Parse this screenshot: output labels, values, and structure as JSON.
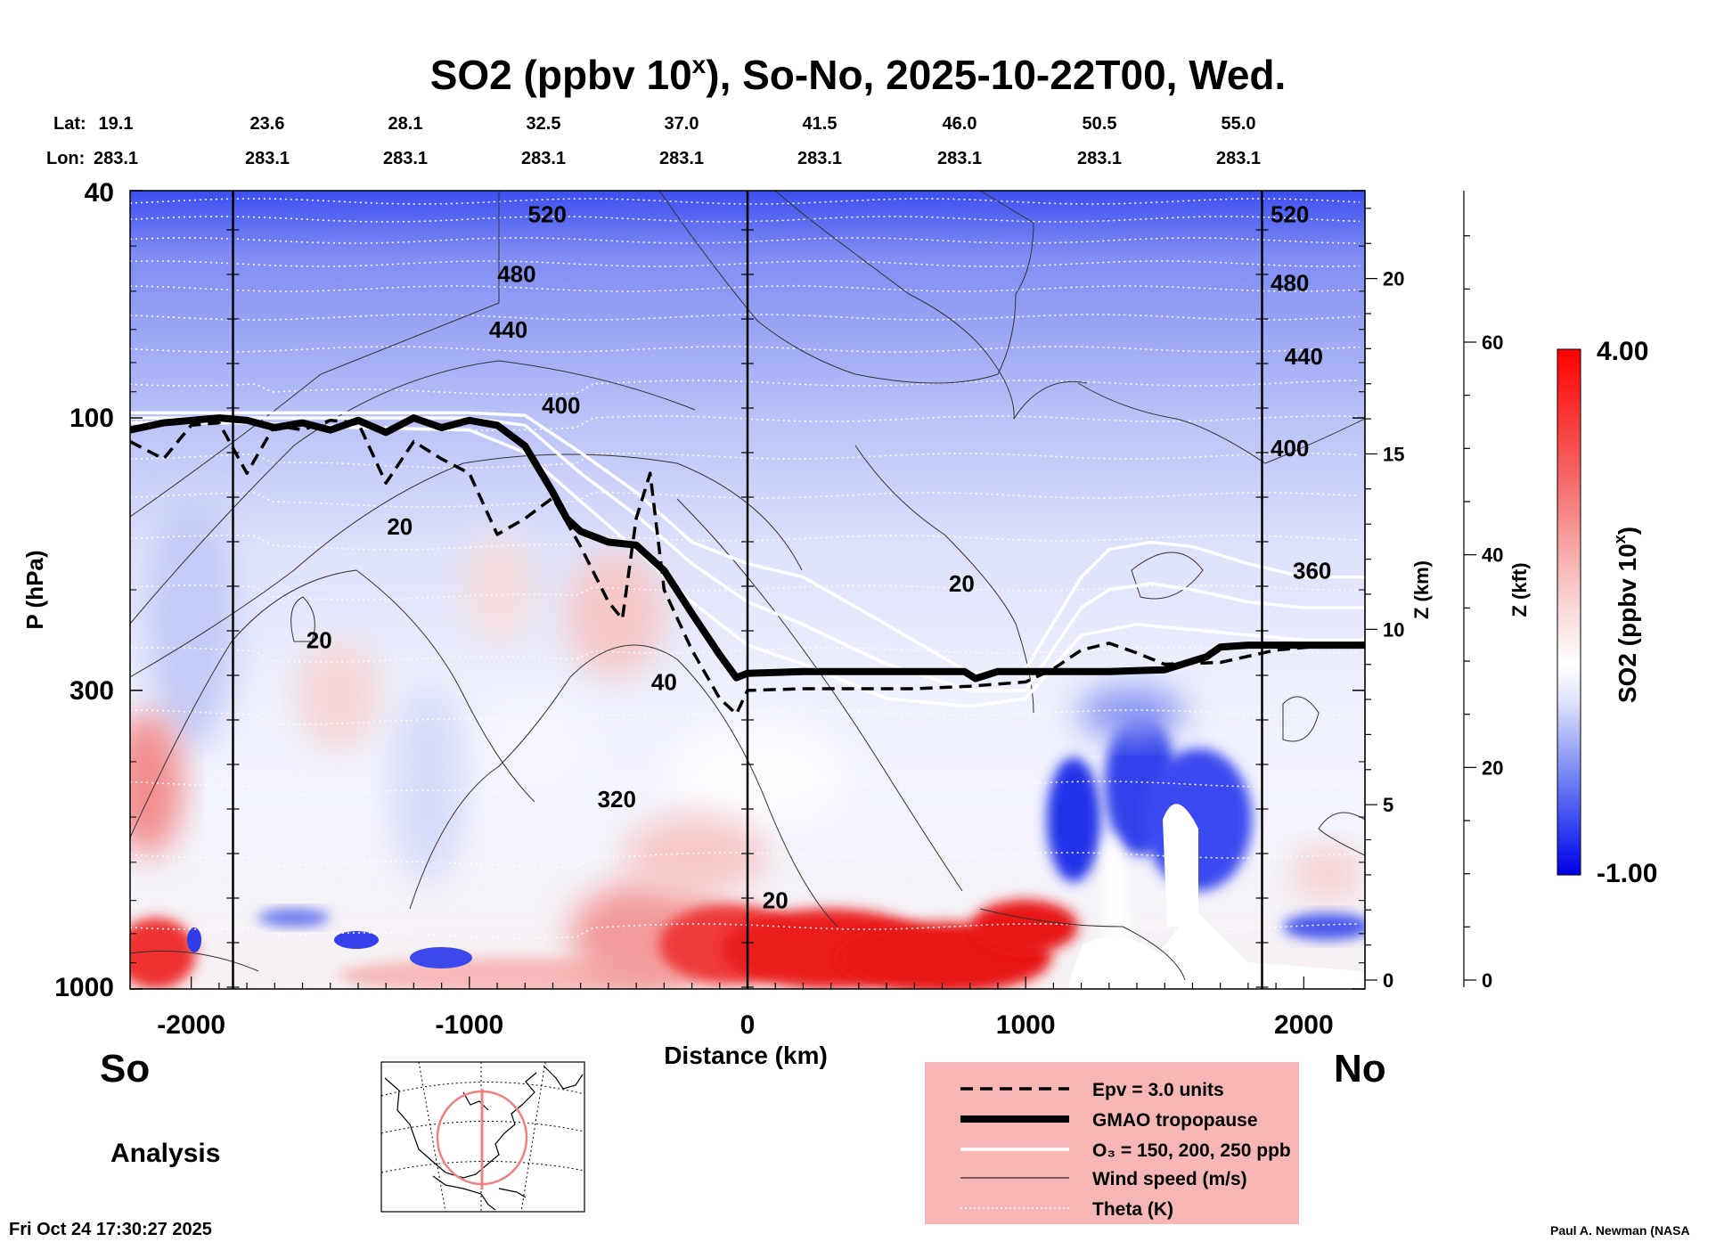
{
  "title": "SO2 (ppbv 10",
  "title_sup": "x",
  "title_rest": "), So-No, 2025-10-22T00, Wed.",
  "header": {
    "lat_label": "Lat:",
    "lon_label": "Lon:",
    "lats": [
      "19.1",
      "23.6",
      "28.1",
      "32.5",
      "37.0",
      "41.5",
      "46.0",
      "50.5",
      "55.0"
    ],
    "lons": [
      "283.1",
      "283.1",
      "283.1",
      "283.1",
      "283.1",
      "283.1",
      "283.1",
      "283.1",
      "283.1"
    ]
  },
  "footer": {
    "south_label": "So",
    "north_label": "No",
    "analysis_label": "Analysis",
    "timestamp": "Fri Oct 24 17:30:27 2025",
    "credit": "Paul A. Newman (NASA"
  },
  "legend": {
    "background": "#f7b6b6",
    "items": [
      {
        "style": "dashed",
        "label": "Epv = 3.0 units"
      },
      {
        "style": "thick",
        "label": "GMAO tropopause"
      },
      {
        "style": "white",
        "label": "O₃ = 150, 200, 250 ppb"
      },
      {
        "style": "thin",
        "label": "Wind speed (m/s)"
      },
      {
        "style": "dotted",
        "label": "Theta (K)"
      }
    ]
  },
  "colorbar": {
    "max_label": "4.00",
    "min_label": "-1.00",
    "label": "SO2 (ppbv 10",
    "label_sup": "x",
    "label_end": ")",
    "colors": [
      "#0000e6",
      "#ffffff",
      "#ff0000"
    ]
  },
  "chart_data": {
    "type": "heatmap",
    "xlabel": "Distance (km)",
    "ylabel": "P (hPa)",
    "y2label": "Z (km)",
    "y3label": "Z (kft)",
    "xlim": [
      -2220,
      2220
    ],
    "ylim": [
      1000,
      40
    ],
    "y_scale": "log",
    "x_ticks": [
      -2000,
      -1000,
      0,
      1000,
      2000
    ],
    "y_ticks": [
      40,
      100,
      300,
      1000
    ],
    "z_km_ticks": [
      0,
      5,
      10,
      15,
      20
    ],
    "z_kft_ticks": [
      0,
      20,
      40,
      60
    ],
    "vertical_lines_km": [
      -1850,
      0,
      1850
    ],
    "colorscale_range": [
      -1.0,
      4.0
    ],
    "theta_labels": [
      {
        "value": "520",
        "x": -720,
        "p": 44
      },
      {
        "value": "480",
        "x": -830,
        "p": 56
      },
      {
        "value": "440",
        "x": -860,
        "p": 70
      },
      {
        "value": "400",
        "x": -670,
        "p": 95
      },
      {
        "value": "520",
        "x": 1950,
        "p": 44
      },
      {
        "value": "480",
        "x": 1950,
        "p": 58
      },
      {
        "value": "440",
        "x": 2000,
        "p": 78
      },
      {
        "value": "400",
        "x": 1950,
        "p": 113
      },
      {
        "value": "360",
        "x": 2030,
        "p": 185
      },
      {
        "value": "320",
        "x": -470,
        "p": 465
      }
    ],
    "wind_labels": [
      {
        "value": "20",
        "x": -1250,
        "p": 155
      },
      {
        "value": "20",
        "x": -1540,
        "p": 245
      },
      {
        "value": "40",
        "x": -300,
        "p": 290
      },
      {
        "value": "20",
        "x": 770,
        "p": 195
      },
      {
        "value": "20",
        "x": 100,
        "p": 700
      }
    ],
    "tropopause": {
      "x": [
        -2220,
        -2100,
        -2000,
        -1900,
        -1800,
        -1700,
        -1600,
        -1500,
        -1400,
        -1300,
        -1200,
        -1100,
        -1000,
        -900,
        -800,
        -700,
        -650,
        -600,
        -500,
        -400,
        -300,
        -200,
        -100,
        -40,
        0,
        200,
        400,
        600,
        780,
        820,
        900,
        1100,
        1300,
        1500,
        1650,
        1700,
        1800,
        2000,
        2220
      ],
      "p": [
        105,
        102,
        101,
        100,
        101,
        104,
        102,
        105,
        101,
        106,
        100,
        104,
        101,
        103,
        112,
        135,
        150,
        158,
        165,
        167,
        185,
        220,
        260,
        285,
        280,
        278,
        278,
        278,
        278,
        286,
        278,
        278,
        278,
        276,
        262,
        252,
        250,
        250,
        250
      ]
    },
    "epv_line": {
      "x": [
        -2220,
        -2100,
        -2000,
        -1900,
        -1800,
        -1700,
        -1600,
        -1500,
        -1400,
        -1300,
        -1200,
        -1100,
        -1000,
        -900,
        -800,
        -700,
        -600,
        -500,
        -450,
        -400,
        -350,
        -300,
        -200,
        -100,
        -40,
        0,
        200,
        400,
        600,
        800,
        1000,
        1100,
        1200,
        1300,
        1400,
        1500,
        1700,
        1900,
        2100,
        2220
      ],
      "p": [
        110,
        118,
        103,
        102,
        125,
        103,
        105,
        101,
        102,
        130,
        110,
        118,
        125,
        160,
        150,
        138,
        168,
        210,
        225,
        150,
        125,
        200,
        255,
        310,
        330,
        300,
        298,
        298,
        298,
        295,
        290,
        275,
        255,
        248,
        258,
        270,
        268,
        255,
        250,
        248
      ]
    },
    "ozone_lines": [
      {
        "x": [
          -2220,
          -1800,
          -1400,
          -1000,
          -800,
          -600,
          -400,
          -200,
          0,
          200,
          500,
          800,
          1000,
          1200,
          1300,
          1450,
          1600,
          1800,
          2000,
          2220
        ],
        "p": [
          98,
          98,
          98,
          98,
          99,
          115,
          135,
          165,
          180,
          190,
          230,
          280,
          275,
          190,
          170,
          165,
          168,
          180,
          190,
          190
        ]
      },
      {
        "x": [
          -2220,
          -1800,
          -1400,
          -1000,
          -800,
          -600,
          -400,
          -200,
          0,
          200,
          500,
          800,
          1000,
          1200,
          1300,
          1450,
          1600,
          1800,
          2000,
          2220
        ],
        "p": [
          100,
          100,
          100,
          100,
          103,
          125,
          148,
          180,
          210,
          230,
          270,
          300,
          300,
          215,
          200,
          195,
          200,
          210,
          215,
          215
        ]
      },
      {
        "x": [
          -2220,
          -1800,
          -1400,
          -1000,
          -800,
          -600,
          -400,
          -200,
          0,
          200,
          500,
          800,
          1000,
          1200,
          1400,
          1600,
          1800,
          2000,
          2220
        ],
        "p": [
          102,
          102,
          104,
          105,
          115,
          140,
          170,
          210,
          250,
          270,
          310,
          320,
          310,
          240,
          230,
          235,
          240,
          245,
          245
        ]
      }
    ]
  }
}
